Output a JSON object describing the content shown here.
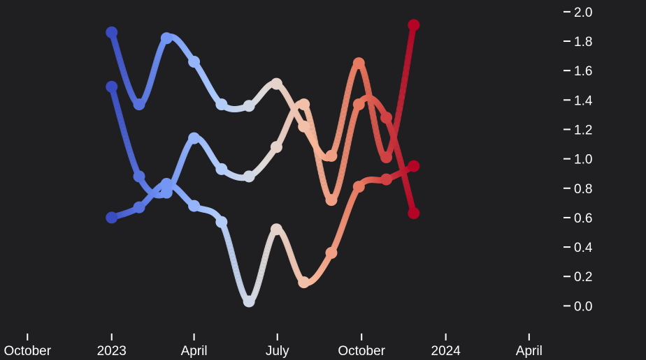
{
  "chart_data": {
    "type": "line",
    "title": "",
    "xlabel": "",
    "ylabel": "",
    "y_axis_position": "right",
    "grid": false,
    "legend": "none",
    "background": "#1f1e21",
    "ylim": [
      -0.15,
      2.08
    ],
    "xlim": [
      "2022-09-01",
      "2024-05-04"
    ],
    "y_ticks": [
      0.0,
      0.2,
      0.4,
      0.6,
      0.8,
      1.0,
      1.2,
      1.4,
      1.6,
      1.8,
      2.0
    ],
    "y_tick_labels": [
      "0.0",
      "0.2",
      "0.4",
      "0.6",
      "0.8",
      "1.0",
      "1.2",
      "1.4",
      "1.6",
      "1.8",
      "2.0"
    ],
    "x_ticks": [
      "2022-10-01",
      "2023-01-01",
      "2023-04-01",
      "2023-07-01",
      "2023-10-01",
      "2024-01-01",
      "2024-04-01"
    ],
    "x_tick_labels": [
      "October",
      "2023",
      "April",
      "July",
      "October",
      "2024",
      "April"
    ],
    "x": [
      "2023-01-01",
      "2023-01-31",
      "2023-03-02",
      "2023-04-01",
      "2023-05-01",
      "2023-05-31",
      "2023-06-30",
      "2023-07-30",
      "2023-08-29",
      "2023-09-28",
      "2023-10-28",
      "2023-11-27"
    ],
    "colormap": [
      "#3b4cc0",
      "#6f92f3",
      "#aac7fd",
      "#dddcdc",
      "#f7b89c",
      "#e7745b",
      "#b40426"
    ],
    "series": [
      {
        "values": [
          1.86,
          1.37,
          1.82,
          1.66,
          1.37,
          1.36,
          1.51,
          1.22,
          1.02,
          1.65,
          1.01,
          1.91
        ]
      },
      {
        "values": [
          1.49,
          0.88,
          0.77,
          1.14,
          0.93,
          0.88,
          1.08,
          1.37,
          0.72,
          1.37,
          1.28,
          0.63
        ]
      },
      {
        "values": [
          0.6,
          0.67,
          0.83,
          0.68,
          0.57,
          0.03,
          0.52,
          0.16,
          0.36,
          0.81,
          0.86,
          0.95
        ]
      }
    ]
  }
}
